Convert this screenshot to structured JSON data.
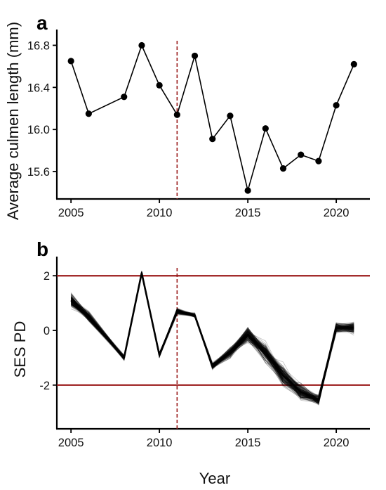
{
  "chart_data": [
    {
      "panel": "a",
      "type": "line",
      "ylabel": "Average culmen length (mm)",
      "xlabel": "",
      "x": [
        2005,
        2006,
        2008,
        2009,
        2010,
        2011,
        2012,
        2013,
        2014,
        2015,
        2016,
        2017,
        2018,
        2019,
        2020,
        2021
      ],
      "series": [
        {
          "values": [
            16.65,
            16.15,
            16.31,
            16.8,
            16.42,
            16.14,
            16.7,
            15.91,
            16.13,
            15.42,
            16.01,
            15.63,
            15.76,
            15.7,
            16.23,
            16.62
          ]
        }
      ],
      "xlim": [
        2004.2,
        2021.9
      ],
      "ylim": [
        15.34,
        16.95
      ],
      "xticks": [
        "2005",
        "2010",
        "2015",
        "2020"
      ],
      "yticks": [
        "15.6",
        "16.0",
        "16.4",
        "16.8"
      ],
      "vline_x": 2011,
      "colors": {
        "line": "#000000",
        "marker": "#000000",
        "vline": "#9b1c1c"
      }
    },
    {
      "panel": "b",
      "type": "line",
      "ylabel": "SES PD",
      "xlabel": "Year",
      "x": [
        2005,
        2006,
        2008,
        2009,
        2010,
        2011,
        2012,
        2013,
        2014,
        2015,
        2016,
        2017,
        2018,
        2019,
        2020,
        2021
      ],
      "series": [
        {
          "values": [
            1.1,
            0.5,
            -1.0,
            2.1,
            -0.9,
            0.7,
            0.55,
            -1.3,
            -0.8,
            -0.15,
            -0.8,
            -1.65,
            -2.25,
            -2.55,
            0.1,
            0.1
          ]
        }
      ],
      "replicates": 150,
      "xlim": [
        2004.2,
        2021.9
      ],
      "ylim": [
        -3.6,
        2.7
      ],
      "xticks": [
        "2005",
        "2010",
        "2015",
        "2020"
      ],
      "yticks": [
        "-2",
        "0",
        "2"
      ],
      "hlines_y": [
        2,
        -2
      ],
      "vline_x": 2011,
      "colors": {
        "line": "#000000",
        "hline": "#9b1c1c",
        "vline": "#9b1c1c"
      }
    }
  ]
}
